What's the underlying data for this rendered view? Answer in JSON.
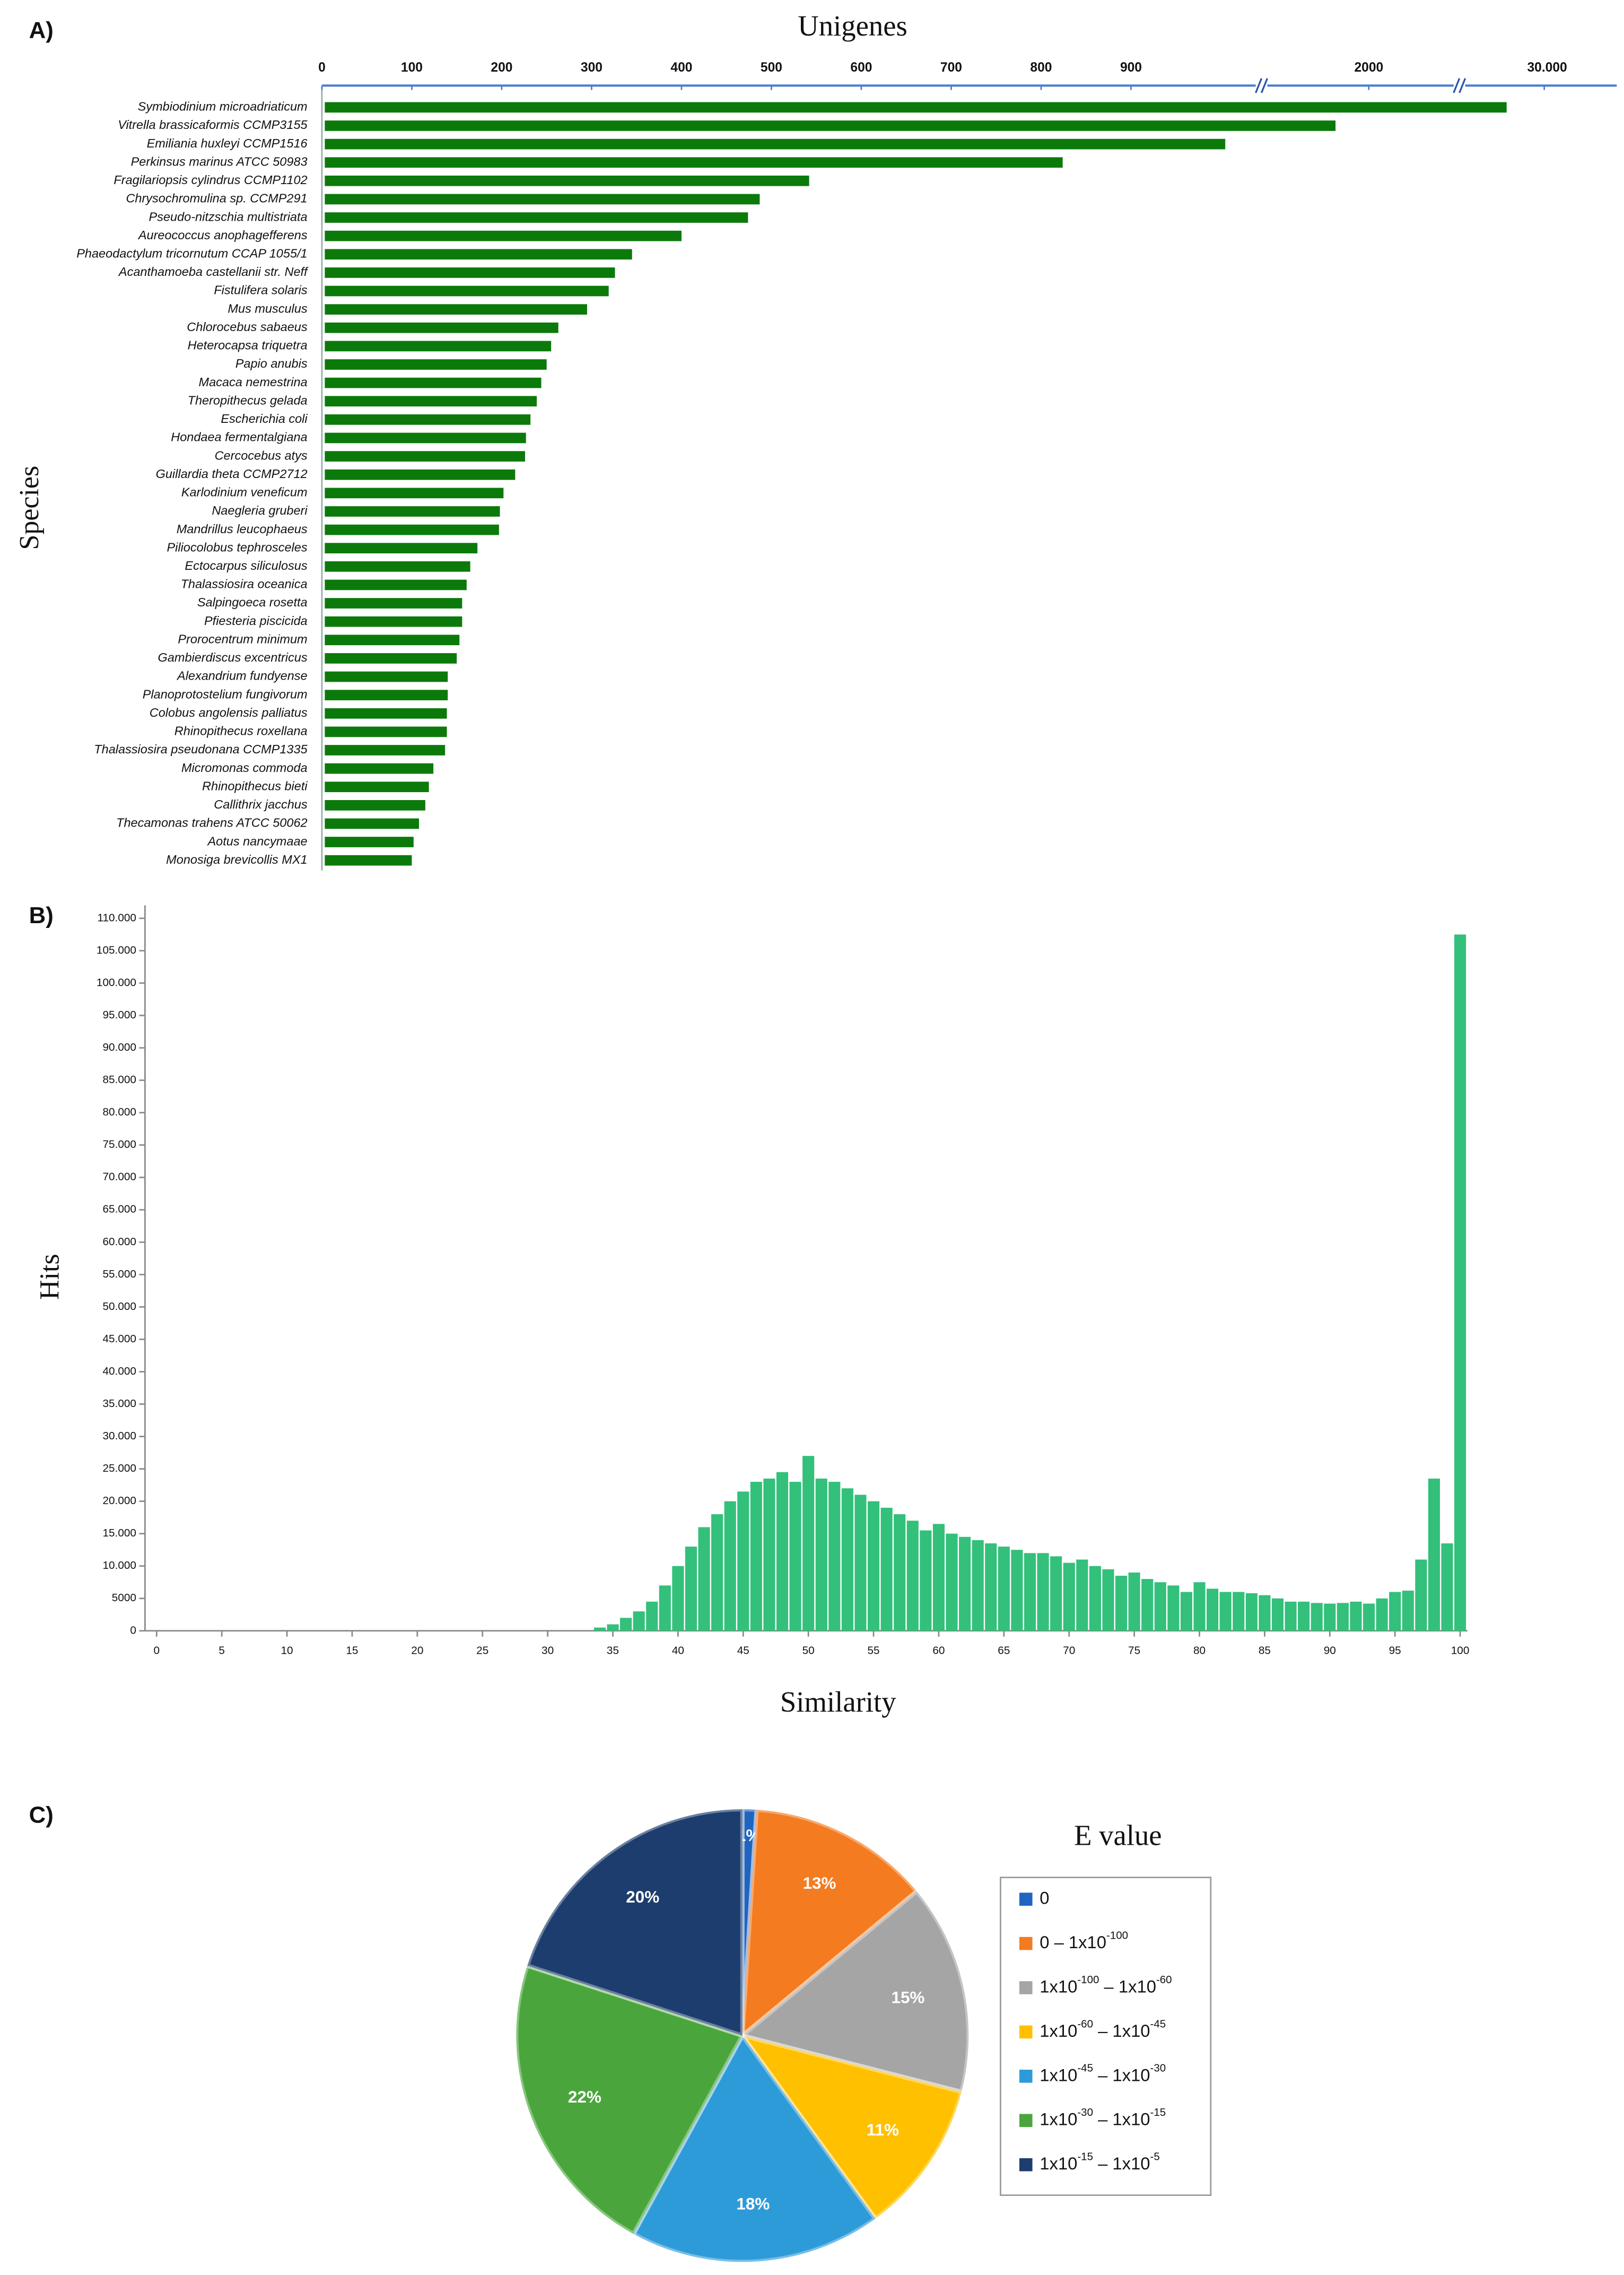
{
  "chart_data": [
    {
      "type": "hbar",
      "panel_label": "A)",
      "title": "Unigenes",
      "ylabel": "Species",
      "categories": [
        "Symbiodinium microadriaticum",
        "Vitrella brassicaformis CCMP3155",
        "Emiliania huxleyi CCMP1516",
        "Perkinsus marinus ATCC 50983",
        "Fragilariopsis cylindrus CCMP1102",
        "Chrysochromulina sp. CCMP291",
        "Pseudo-nitzschia multistriata",
        "Aureococcus anophagefferens",
        "Phaeodactylum tricornutum CCAP 1055/1",
        "Acanthamoeba castellanii str. Neff",
        "Fistulifera solaris",
        "Mus musculus",
        "Chlorocebus sabaeus",
        "Heterocapsa triquetra",
        "Papio anubis",
        "Macaca nemestrina",
        "Theropithecus gelada",
        "Escherichia coli",
        "Hondaea fermentalgiana",
        "Cercocebus atys",
        "Guillardia theta CCMP2712",
        "Karlodinium veneficum",
        "Naegleria gruberi",
        "Mandrillus leucophaeus",
        "Piliocolobus tephrosceles",
        "Ectocarpus siliculosus",
        "Thalassiosira oceanica",
        "Salpingoeca rosetta",
        "Pfiesteria piscicida",
        "Prorocentrum minimum",
        "Gambierdiscus excentricus",
        "Alexandrium fundyense",
        "Planoprotostelium fungivorum",
        "Colobus angolensis palliatus",
        "Rhinopithecus roxellana",
        "Thalassiosira pseudonana CCMP1335",
        "Micromonas commoda",
        "Rhinopithecus bieti",
        "Callithrix jacchus",
        "Thecamonas trahens ATCC 50062",
        "Aotus nancymaae",
        "Monosiga brevicollis MX1"
      ],
      "values": [
        24000,
        1846,
        1336,
        824,
        542,
        487,
        474,
        400,
        345,
        326,
        319,
        295,
        263,
        255,
        250,
        244,
        239,
        232,
        227,
        226,
        215,
        202,
        198,
        197,
        173,
        165,
        161,
        156,
        156,
        153,
        150,
        140,
        140,
        139,
        139,
        137,
        124,
        119,
        115,
        108,
        102,
        100
      ],
      "color": "#0b7a0b",
      "xlim": [
        0,
        30000
      ],
      "xticks": [
        0,
        100,
        200,
        300,
        400,
        500,
        600,
        700,
        800,
        900,
        2000,
        {
          "value": 30000,
          "label": "30.000"
        }
      ],
      "axis_break": true
    },
    {
      "type": "bar",
      "panel_label": "B)",
      "xlabel": "Similarity",
      "ylabel": "Hits",
      "x": [
        34,
        35,
        36,
        37,
        38,
        39,
        40,
        41,
        42,
        43,
        44,
        45,
        46,
        47,
        48,
        49,
        50,
        51,
        52,
        53,
        54,
        55,
        56,
        57,
        58,
        59,
        60,
        61,
        62,
        63,
        64,
        65,
        66,
        67,
        68,
        69,
        70,
        71,
        72,
        73,
        74,
        75,
        76,
        77,
        78,
        79,
        80,
        81,
        82,
        83,
        84,
        85,
        86,
        87,
        88,
        89,
        90,
        91,
        92,
        93,
        94,
        95,
        96,
        97,
        98,
        99,
        100
      ],
      "values": [
        500,
        1000,
        2000,
        3000,
        4500,
        7000,
        10000,
        13000,
        16000,
        18000,
        20000,
        21500,
        23000,
        23500,
        24500,
        23000,
        27000,
        23500,
        23000,
        22000,
        21000,
        20000,
        19000,
        18000,
        17000,
        15500,
        16500,
        15000,
        14500,
        14000,
        13500,
        13000,
        12500,
        12000,
        12000,
        11500,
        10500,
        11000,
        10000,
        9500,
        8500,
        9000,
        8000,
        7500,
        7000,
        6000,
        7500,
        6500,
        6000,
        6000,
        5800,
        5500,
        5000,
        4500,
        4500,
        4300,
        4200,
        4300,
        4500,
        4200,
        5000,
        6000,
        6200,
        11000,
        23500,
        13500,
        107500
      ],
      "color": "#33c07a",
      "xlim": [
        0,
        100
      ],
      "xticks": [
        0,
        5,
        10,
        15,
        20,
        25,
        30,
        35,
        40,
        45,
        50,
        55,
        60,
        65,
        70,
        75,
        80,
        85,
        90,
        95,
        100
      ],
      "ylim": [
        0,
        112000
      ],
      "yticks": [
        0,
        5000,
        {
          "value": 10000,
          "label": "10.000"
        },
        {
          "value": 15000,
          "label": "15.000"
        },
        {
          "value": 20000,
          "label": "20.000"
        },
        {
          "value": 25000,
          "label": "25.000"
        },
        {
          "value": 30000,
          "label": "30.000"
        },
        {
          "value": 35000,
          "label": "35.000"
        },
        {
          "value": 40000,
          "label": "40.000"
        },
        {
          "value": 45000,
          "label": "45.000"
        },
        {
          "value": 50000,
          "label": "50.000"
        },
        {
          "value": 55000,
          "label": "55.000"
        },
        {
          "value": 60000,
          "label": "60.000"
        },
        {
          "value": 65000,
          "label": "65.000"
        },
        {
          "value": 70000,
          "label": "70.000"
        },
        {
          "value": 75000,
          "label": "75.000"
        },
        {
          "value": 80000,
          "label": "80.000"
        },
        {
          "value": 85000,
          "label": "85.000"
        },
        {
          "value": 90000,
          "label": "90.000"
        },
        {
          "value": 95000,
          "label": "95.000"
        },
        {
          "value": 100000,
          "label": "100.000"
        },
        {
          "value": 105000,
          "label": "105.000"
        },
        {
          "value": 110000,
          "label": "110.000"
        }
      ]
    },
    {
      "type": "pie",
      "panel_label": "C)",
      "legend_title": "E value",
      "categories": [
        "0",
        "0 – 1x10-100",
        "1x10-100 – 1x10-60",
        "1x10-60 – 1x10-45",
        "1x10-45 – 1x10-30",
        "1x10-30 – 1x10-15",
        "1x10-15 – 1x10-5"
      ],
      "values": [
        1,
        13,
        15,
        11,
        18,
        22,
        20
      ],
      "value_labels": [
        "1%",
        "13%",
        "15%",
        "11%",
        "18%",
        "22%",
        "20%"
      ],
      "colors": [
        "#1f65c0",
        "#f47b20",
        "#a5a5a5",
        "#ffc000",
        "#2e9bd9",
        "#4aa63c",
        "#1c3d6e"
      ]
    }
  ]
}
